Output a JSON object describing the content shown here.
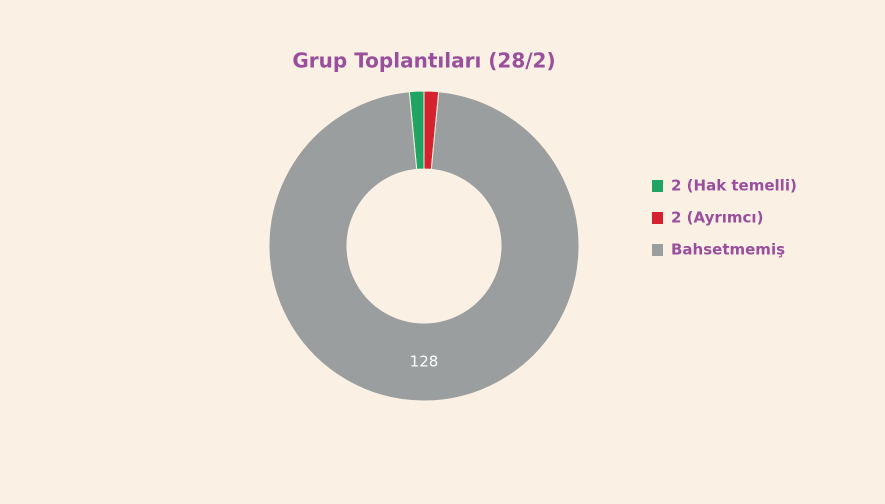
{
  "chart_data": {
    "type": "donut",
    "title": "Grup Toplantıları (28/2)",
    "categories": [
      "2 (Hak temelli)",
      "2 (Ayrımcı)",
      "Bahsetmemiş"
    ],
    "values": [
      2,
      2,
      128
    ],
    "colors": [
      "#1fa463",
      "#d4232e",
      "#9b9e9e"
    ],
    "legend": "right"
  }
}
